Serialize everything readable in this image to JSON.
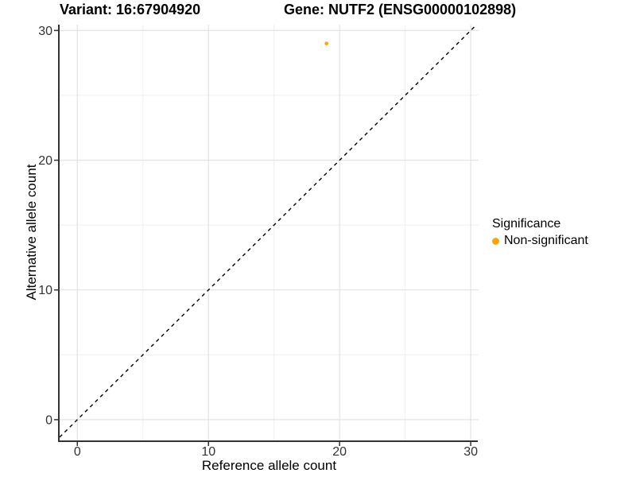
{
  "figure": {
    "title_variant": "Variant: 16:67904920",
    "title_gene": "Gene: NUTF2 (ENSG00000102898)"
  },
  "chart_data": {
    "type": "scatter",
    "titles": [
      "Variant: 16:67904920",
      "Gene: NUTF2 (ENSG00000102898)"
    ],
    "xlabel": "Reference allele count",
    "ylabel": "Alternative allele count",
    "xlim": [
      -1.35,
      30.6
    ],
    "ylim": [
      -1.6,
      30.45
    ],
    "xticks": [
      0,
      10,
      20,
      30
    ],
    "yticks": [
      0,
      10,
      20,
      30
    ],
    "xticks_minor": [
      5,
      15,
      25
    ],
    "yticks_minor": [
      5,
      15,
      25
    ],
    "grid": true,
    "points": [
      {
        "x": 19,
        "y": 29,
        "series": "Non-significant",
        "color": "#FFA500"
      }
    ],
    "reference_line": {
      "slope": 1,
      "intercept": 0,
      "style": "dashed",
      "color": "#000000"
    },
    "legend": {
      "position": "right",
      "title": "Significance",
      "items": [
        {
          "label": "Non-significant",
          "color": "#FFA500"
        }
      ]
    },
    "colors": {
      "point": "#FFA500",
      "grid_major": "#E3E3E3",
      "grid_minor": "#EFEFEF",
      "axis_line": "#333333",
      "tick_text": "#333333",
      "background": "#FFFFFF"
    }
  }
}
